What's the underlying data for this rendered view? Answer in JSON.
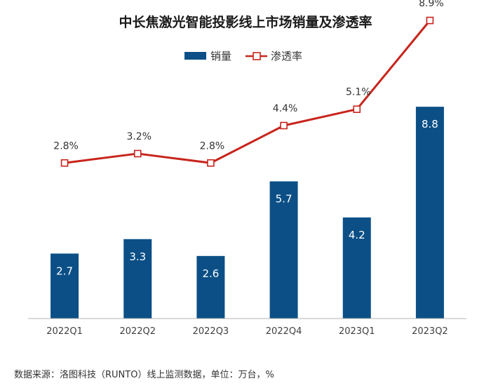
{
  "chart_data": {
    "type": "bar",
    "title": "中长焦激光智能投影线上市场销量及渗透率",
    "categories": [
      "2022Q1",
      "2022Q2",
      "2022Q3",
      "2022Q4",
      "2023Q1",
      "2023Q2"
    ],
    "series": [
      {
        "name": "销量",
        "type": "bar",
        "values": [
          2.7,
          3.3,
          2.6,
          5.7,
          4.2,
          8.8
        ],
        "labels": [
          "2.7",
          "3.3",
          "2.6",
          "5.7",
          "4.2",
          "8.8"
        ],
        "color": "#0b4f86"
      },
      {
        "name": "渗透率",
        "type": "line",
        "values": [
          2.8,
          3.2,
          2.8,
          4.4,
          5.1,
          8.9
        ],
        "labels": [
          "2.8%",
          "3.2%",
          "2.8%",
          "4.4%",
          "5.1%",
          "8.9%"
        ],
        "color": "#c8241c"
      }
    ],
    "legend_position": "top-center",
    "grid": false,
    "y_axis_visible": false,
    "source_note": "数据来源：洛图科技（RUNTO）线上监测数据，单位：万台，%"
  }
}
